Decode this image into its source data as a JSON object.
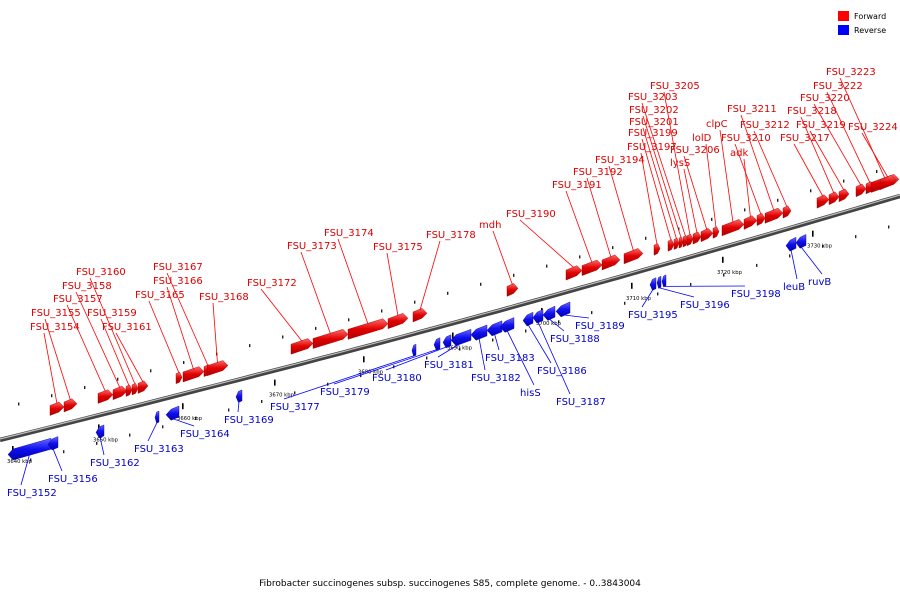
{
  "legend": {
    "forward_label": "Forward",
    "reverse_label": "Reverse",
    "forward_color": "#ff0000",
    "reverse_color": "#0000ff"
  },
  "caption": "Fibrobacter succinogenes subsp. succinogenes S85, complete genome. - 0..3843004",
  "axis": {
    "tick_labels": [
      "3640 kbp",
      "3650 kbp",
      "3660 kbp",
      "3670 kbp",
      "3680 kbp",
      "3690 kbp",
      "3700 kbp",
      "3710 kbp",
      "3720 kbp",
      "3730 kbp"
    ]
  },
  "genes": [
    {
      "label": "FSU_3152",
      "strand": "reverse"
    },
    {
      "label": "FSU_3154",
      "strand": "forward"
    },
    {
      "label": "FSU_3155",
      "strand": "forward"
    },
    {
      "label": "FSU_3156",
      "strand": "reverse"
    },
    {
      "label": "FSU_3157",
      "strand": "forward"
    },
    {
      "label": "FSU_3158",
      "strand": "forward"
    },
    {
      "label": "FSU_3159",
      "strand": "forward"
    },
    {
      "label": "FSU_3160",
      "strand": "forward"
    },
    {
      "label": "FSU_3161",
      "strand": "forward"
    },
    {
      "label": "FSU_3162",
      "strand": "reverse"
    },
    {
      "label": "FSU_3163",
      "strand": "reverse"
    },
    {
      "label": "FSU_3164",
      "strand": "reverse"
    },
    {
      "label": "FSU_3165",
      "strand": "forward"
    },
    {
      "label": "FSU_3166",
      "strand": "forward"
    },
    {
      "label": "FSU_3167",
      "strand": "forward"
    },
    {
      "label": "FSU_3168",
      "strand": "forward"
    },
    {
      "label": "FSU_3169",
      "strand": "reverse"
    },
    {
      "label": "FSU_3172",
      "strand": "forward"
    },
    {
      "label": "FSU_3173",
      "strand": "forward"
    },
    {
      "label": "FSU_3174",
      "strand": "forward"
    },
    {
      "label": "FSU_3175",
      "strand": "forward"
    },
    {
      "label": "FSU_3177",
      "strand": "reverse"
    },
    {
      "label": "FSU_3178",
      "strand": "forward"
    },
    {
      "label": "FSU_3179",
      "strand": "reverse"
    },
    {
      "label": "FSU_3180",
      "strand": "reverse"
    },
    {
      "label": "FSU_3181",
      "strand": "reverse"
    },
    {
      "label": "FSU_3182",
      "strand": "reverse"
    },
    {
      "label": "FSU_3183",
      "strand": "reverse"
    },
    {
      "label": "hisS",
      "strand": "reverse"
    },
    {
      "label": "FSU_3186",
      "strand": "reverse"
    },
    {
      "label": "FSU_3187",
      "strand": "reverse"
    },
    {
      "label": "FSU_3188",
      "strand": "reverse"
    },
    {
      "label": "FSU_3189",
      "strand": "reverse"
    },
    {
      "label": "mdh",
      "strand": "forward"
    },
    {
      "label": "FSU_3190",
      "strand": "forward"
    },
    {
      "label": "FSU_3191",
      "strand": "forward"
    },
    {
      "label": "FSU_3192",
      "strand": "forward"
    },
    {
      "label": "FSU_3194",
      "strand": "forward"
    },
    {
      "label": "FSU_3195",
      "strand": "reverse"
    },
    {
      "label": "FSU_3196",
      "strand": "reverse"
    },
    {
      "label": "FSU_3197",
      "strand": "forward"
    },
    {
      "label": "FSU_3198",
      "strand": "reverse"
    },
    {
      "label": "FSU_3199",
      "strand": "forward"
    },
    {
      "label": "FSU_3201",
      "strand": "forward"
    },
    {
      "label": "FSU_3202",
      "strand": "forward"
    },
    {
      "label": "FSU_3203",
      "strand": "forward"
    },
    {
      "label": "FSU_3205",
      "strand": "forward"
    },
    {
      "label": "lysS",
      "strand": "forward"
    },
    {
      "label": "FSU_3206",
      "strand": "forward"
    },
    {
      "label": "lolD",
      "strand": "forward"
    },
    {
      "label": "clpC",
      "strand": "forward"
    },
    {
      "label": "adk",
      "strand": "forward"
    },
    {
      "label": "FSU_3210",
      "strand": "forward"
    },
    {
      "label": "FSU_3211",
      "strand": "forward"
    },
    {
      "label": "FSU_3212",
      "strand": "forward"
    },
    {
      "label": "leuB",
      "strand": "reverse"
    },
    {
      "label": "ruvB",
      "strand": "reverse"
    },
    {
      "label": "FSU_3217",
      "strand": "forward"
    },
    {
      "label": "FSU_3218",
      "strand": "forward"
    },
    {
      "label": "FSU_3219",
      "strand": "forward"
    },
    {
      "label": "FSU_3220",
      "strand": "forward"
    },
    {
      "label": "FSU_3222",
      "strand": "forward"
    },
    {
      "label": "FSU_3223",
      "strand": "forward"
    },
    {
      "label": "FSU_3224",
      "strand": "forward"
    }
  ]
}
